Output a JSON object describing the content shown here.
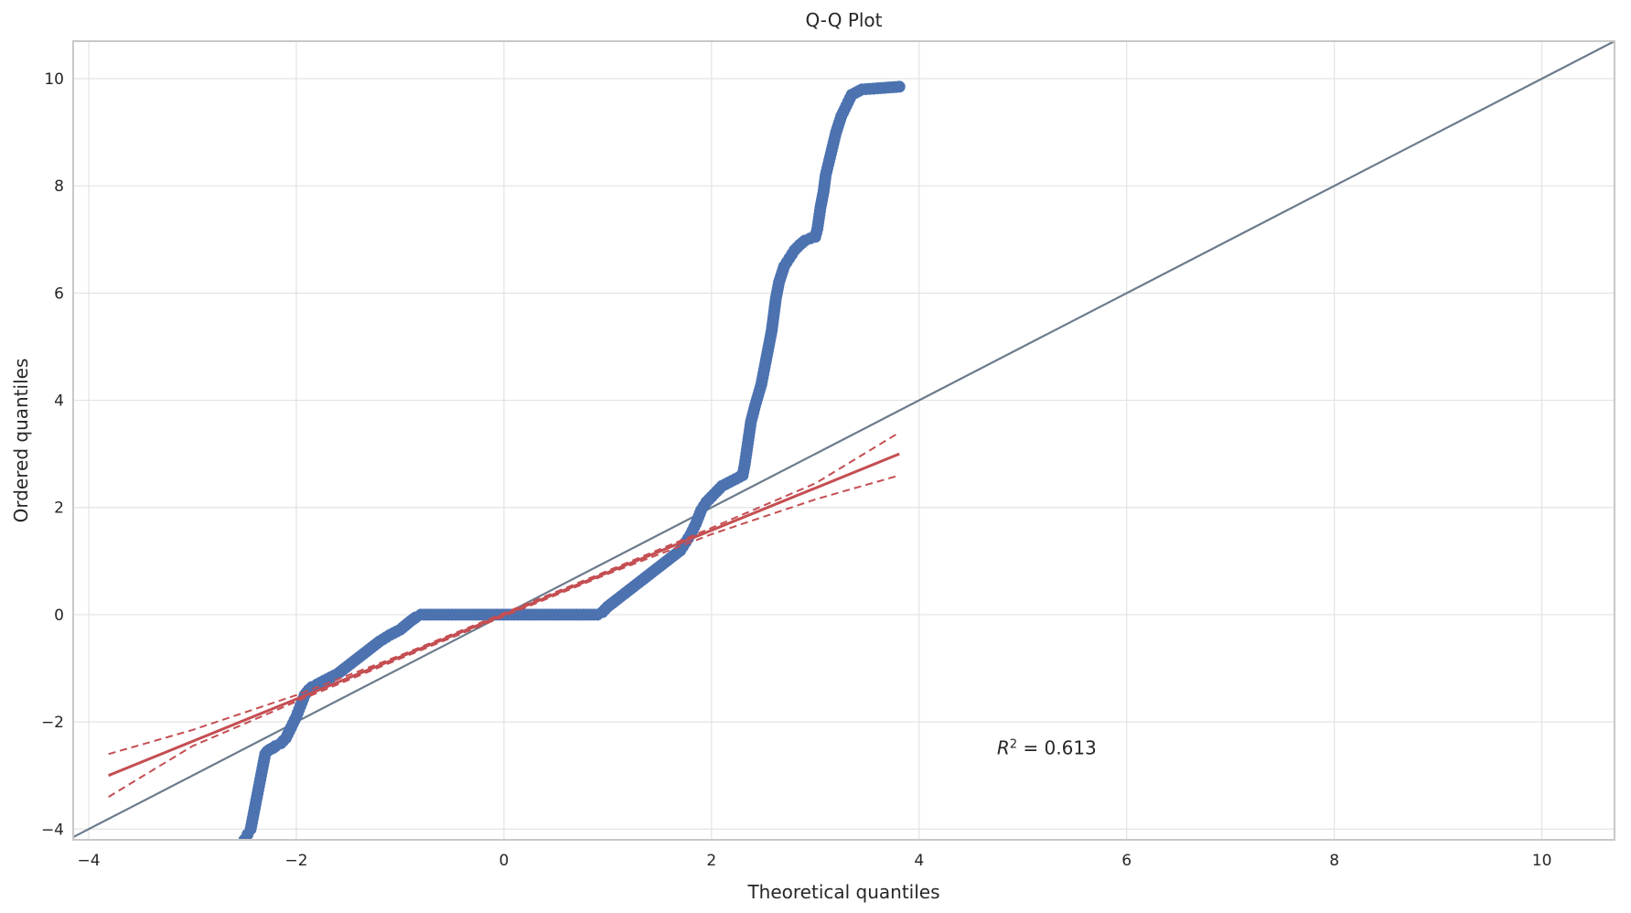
{
  "chart_data": {
    "type": "scatter",
    "title": "Q-Q Plot",
    "xlabel": "Theoretical quantiles",
    "ylabel": "Ordered quantiles",
    "xlim": [
      -4.15,
      10.7
    ],
    "ylim": [
      -4.2,
      10.7
    ],
    "xticks": [
      -4,
      -2,
      0,
      2,
      4,
      6,
      8,
      10
    ],
    "yticks": [
      -4,
      -2,
      0,
      2,
      4,
      6,
      8,
      10
    ],
    "grid": true,
    "annotation": {
      "prefix": "R",
      "sup": "2",
      "text": " = 0.613",
      "x": 4.75,
      "y": -2.6
    },
    "reference_line": {
      "x": [
        -4.15,
        10.7
      ],
      "y": [
        -4.15,
        10.7
      ],
      "color": "#6b7b8c"
    },
    "fit_line": {
      "x": [
        -3.81,
        3.81
      ],
      "y": [
        -3.0,
        3.0
      ],
      "color": "#c44e52"
    },
    "confidence_band_upper": {
      "x": [
        -3.81,
        -3.0,
        -2.0,
        -1.0,
        0.0,
        1.0,
        2.0,
        3.0,
        3.81
      ],
      "y": [
        -2.6,
        -2.15,
        -1.5,
        -0.76,
        0.03,
        0.82,
        1.62,
        2.45,
        3.4
      ]
    },
    "confidence_band_lower": {
      "x": [
        -3.81,
        -3.0,
        -2.0,
        -1.0,
        0.0,
        1.0,
        2.0,
        3.0,
        3.81
      ],
      "y": [
        -3.4,
        -2.45,
        -1.62,
        -0.82,
        -0.03,
        0.76,
        1.5,
        2.15,
        2.6
      ]
    },
    "series": [
      {
        "color": "#4c72b0",
        "x": [
          -2.5,
          -2.47,
          -2.44,
          -2.42,
          -2.4,
          -2.38,
          -2.36,
          -2.34,
          -2.32,
          -2.3,
          -2.28,
          -2.26,
          -2.24,
          -2.22,
          -2.2,
          -2.15,
          -2.1,
          -2.05,
          -2.0,
          -1.96,
          -1.92,
          -1.88,
          -1.85,
          -1.8,
          -1.7,
          -1.6,
          -1.5,
          -1.4,
          -1.3,
          -1.2,
          -1.1,
          -1.0,
          -0.95,
          -0.9,
          -0.85,
          -0.8,
          -0.7,
          -0.5,
          -0.3,
          -0.1,
          0.1,
          0.3,
          0.5,
          0.7,
          0.9,
          0.95,
          1.0,
          1.1,
          1.2,
          1.3,
          1.4,
          1.5,
          1.6,
          1.7,
          1.75,
          1.8,
          1.85,
          1.9,
          1.95,
          2.0,
          2.1,
          2.2,
          2.3,
          2.32,
          2.35,
          2.38,
          2.42,
          2.45,
          2.48,
          2.5,
          2.52,
          2.55,
          2.58,
          2.6,
          2.62,
          2.65,
          2.7,
          2.75,
          2.8,
          2.85,
          2.9,
          2.95,
          3.0,
          3.02,
          3.05,
          3.08,
          3.1,
          3.15,
          3.2,
          3.25,
          3.3,
          3.35,
          3.45,
          3.6,
          3.81
        ],
        "y": [
          -4.2,
          -4.1,
          -4.0,
          -3.8,
          -3.6,
          -3.4,
          -3.2,
          -3.0,
          -2.8,
          -2.6,
          -2.55,
          -2.52,
          -2.5,
          -2.48,
          -2.45,
          -2.4,
          -2.3,
          -2.1,
          -1.9,
          -1.7,
          -1.5,
          -1.4,
          -1.35,
          -1.3,
          -1.2,
          -1.1,
          -0.95,
          -0.8,
          -0.65,
          -0.5,
          -0.38,
          -0.28,
          -0.2,
          -0.12,
          -0.05,
          0.0,
          0.0,
          0.0,
          0.0,
          0.0,
          0.0,
          0.0,
          0.0,
          0.0,
          0.0,
          0.05,
          0.15,
          0.3,
          0.45,
          0.6,
          0.75,
          0.9,
          1.05,
          1.2,
          1.35,
          1.5,
          1.7,
          1.95,
          2.1,
          2.2,
          2.4,
          2.5,
          2.6,
          2.8,
          3.2,
          3.6,
          3.9,
          4.1,
          4.3,
          4.5,
          4.7,
          5.0,
          5.3,
          5.6,
          5.9,
          6.2,
          6.5,
          6.65,
          6.8,
          6.9,
          6.98,
          7.02,
          7.05,
          7.2,
          7.6,
          7.9,
          8.2,
          8.6,
          9.0,
          9.3,
          9.5,
          9.7,
          9.8,
          9.82,
          9.85
        ]
      }
    ]
  }
}
